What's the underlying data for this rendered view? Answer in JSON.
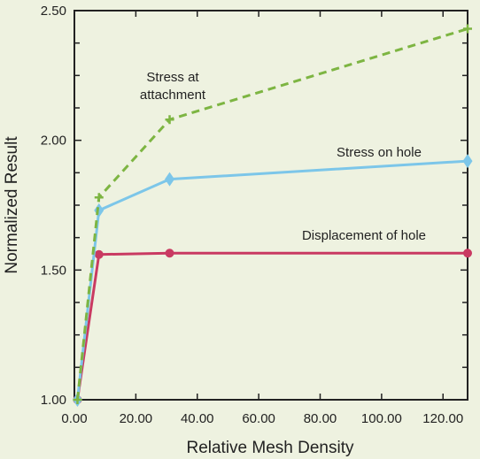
{
  "chart_data": {
    "type": "line",
    "title": "",
    "xlabel": "Relative Mesh Density",
    "ylabel": "Normalized Result",
    "xlim": [
      0,
      128
    ],
    "ylim": [
      1.0,
      2.5
    ],
    "x_ticks": [
      0,
      20,
      40,
      60,
      80,
      100,
      120
    ],
    "x_tick_labels": [
      "0.00",
      "20.00",
      "40.00",
      "60.00",
      "80.00",
      "100.00",
      "120.00"
    ],
    "y_ticks": [
      1.0,
      1.5,
      2.0,
      2.5
    ],
    "y_tick_labels": [
      "1.00",
      "1.50",
      "2.00",
      "2.50"
    ],
    "grid": false,
    "legend": "none",
    "series": [
      {
        "name": "Stress at attachment",
        "label_lines": [
          "Stress at",
          "attachment"
        ],
        "color": "#7db542",
        "line_style": "dashed",
        "marker": "plus",
        "x": [
          1,
          8,
          31,
          128
        ],
        "y": [
          1.0,
          1.78,
          2.08,
          2.43
        ]
      },
      {
        "name": "Stress on hole",
        "label_lines": [
          "Stress on hole"
        ],
        "color": "#7cc6e9",
        "line_style": "solid",
        "marker": "diamond",
        "x": [
          1,
          8,
          31,
          128
        ],
        "y": [
          1.0,
          1.73,
          1.85,
          1.92
        ]
      },
      {
        "name": "Displacement of hole",
        "label_lines": [
          "Displacement of hole"
        ],
        "color": "#c93a62",
        "line_style": "solid",
        "marker": "circle",
        "x": [
          1,
          8,
          31,
          128
        ],
        "y": [
          1.0,
          1.56,
          1.565,
          1.565
        ]
      }
    ]
  }
}
